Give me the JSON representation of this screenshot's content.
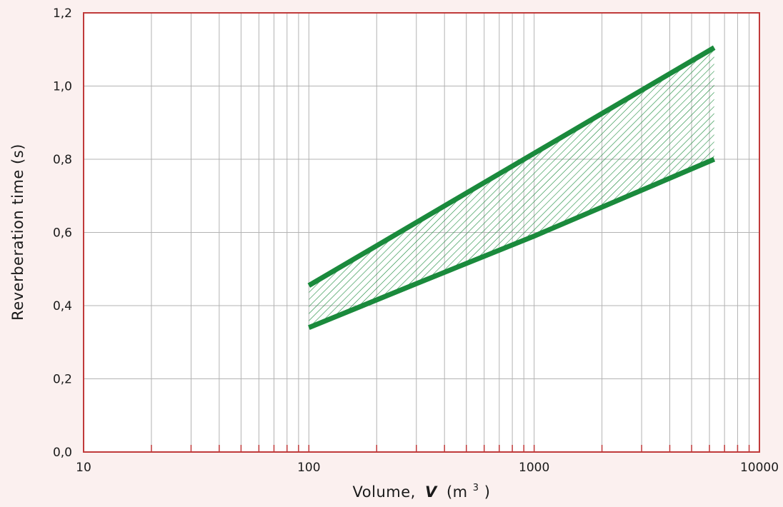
{
  "chart_data": {
    "type": "area",
    "xlabel": "Volume,",
    "xlabel_var": "V",
    "xlabel_unit_open": "(m",
    "xlabel_unit_sup": "3",
    "xlabel_unit_close": ")",
    "ylabel": "Reverberation time (s)",
    "xscale": "log",
    "xlim": [
      10,
      10000
    ],
    "ylim": [
      0,
      1.2
    ],
    "xticks": [
      {
        "value": 10,
        "label": "10"
      },
      {
        "value": 100,
        "label": "100"
      },
      {
        "value": 1000,
        "label": "1000"
      },
      {
        "value": 10000,
        "label": "10000"
      }
    ],
    "yticks": [
      {
        "value": 0,
        "label": "0,0"
      },
      {
        "value": 0.2,
        "label": "0,2"
      },
      {
        "value": 0.4,
        "label": "0,4"
      },
      {
        "value": 0.6,
        "label": "0,6"
      },
      {
        "value": 0.8,
        "label": "0,8"
      },
      {
        "value": 1.0,
        "label": "1,0"
      },
      {
        "value": 1.2,
        "label": "1,2"
      }
    ],
    "grid": true,
    "series": [
      {
        "x": [
          100,
          6300
        ],
        "y": [
          0.455,
          1.105
        ]
      },
      {
        "x": [
          100,
          300,
          1000,
          6300
        ],
        "y": [
          0.34,
          0.46,
          0.59,
          0.8
        ]
      }
    ],
    "band_between_series": true,
    "colors": {
      "line": "#1a8a3c",
      "hatch": "#1a8a3c",
      "frame": "#c03a3a",
      "grid": "#b3b3b3",
      "background": "#fbf0ef",
      "plot_background": "#ffffff"
    }
  }
}
